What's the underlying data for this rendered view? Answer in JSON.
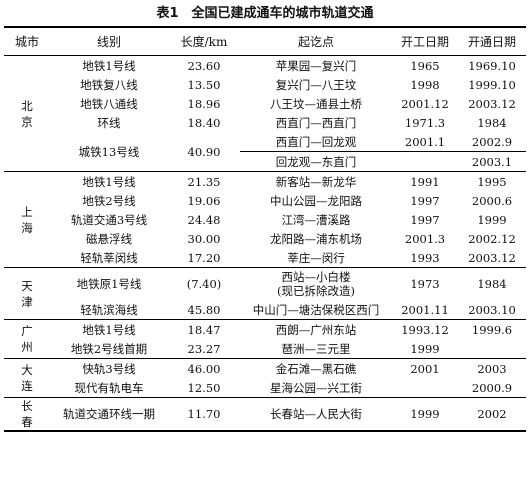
{
  "title": "表1　全国已建成通车的城市轨道交通",
  "headers": [
    "城市",
    "线别",
    "长度/km",
    "起讫点",
    "开工日期",
    "开通日期"
  ],
  "groups": [
    {
      "city": "北京",
      "rows": [
        [
          "地铁1号线",
          "23.60",
          "苹果园—复兴门",
          "1965",
          "1969.10"
        ],
        [
          "地铁复八线",
          "13.50",
          "复兴门—八王坟",
          "1998",
          "1999.10"
        ],
        [
          "地铁八通线",
          "18.96",
          "八王坟—通县土桥",
          "2001.12",
          "2003.12"
        ],
        [
          "环线",
          "18.40",
          "西直门—西直门",
          "1971.3",
          "1984"
        ],
        [
          "城铁13号线",
          "40.90",
          "西直门—回龙观",
          "2001.1",
          "2002.9"
        ],
        [
          "",
          "",
          "回龙观—东直门",
          "",
          "2003.1"
        ]
      ]
    },
    {
      "city": "上海",
      "rows": [
        [
          "地铁1号线",
          "21.35",
          "新客站—新龙华",
          "1991",
          "1995"
        ],
        [
          "地铁2号线",
          "19.06",
          "中山公园—龙阳路",
          "1997",
          "2000.6"
        ],
        [
          "轨道交通3号线",
          "24.48",
          "江湾—漕溪路",
          "1997",
          "1999"
        ],
        [
          "磁悬浮线",
          "30.00",
          "龙阳路—浦东机场",
          "2001.3",
          "2002.12"
        ],
        [
          "轻轨莘闵线",
          "17.20",
          "莘庄—闵行",
          "1993",
          "2003.12"
        ]
      ]
    },
    {
      "city": "天津",
      "rows": [
        [
          "地铁原1号线",
          "(7.40)",
          "西站—小白楼\n(现已拆除改造)",
          "1973",
          "1984"
        ],
        [
          "轻轨滨海线",
          "45.80",
          "中山门—塘沽保税区西门",
          "2001.11",
          "2003.10"
        ]
      ]
    },
    {
      "city": "广州",
      "rows": [
        [
          "地铁1号线",
          "18.47",
          "西朗—广州东站",
          "1993.12",
          "1999.6"
        ],
        [
          "地铁2号线首期",
          "23.27",
          "琶洲—三元里",
          "1999",
          ""
        ]
      ]
    },
    {
      "city": "大连",
      "rows": [
        [
          "快轨3号线",
          "46.00",
          "金石滩—黑石礁",
          "2001",
          "2003"
        ],
        [
          "现代有轨电车",
          "12.50",
          "星海公园—兴工街",
          "",
          "2000.9"
        ]
      ]
    },
    {
      "city": "长春",
      "rows": [
        [
          "轨道交通环线一期",
          "11.70",
          "长春站—人民大街",
          "1999",
          "2002"
        ]
      ]
    }
  ]
}
